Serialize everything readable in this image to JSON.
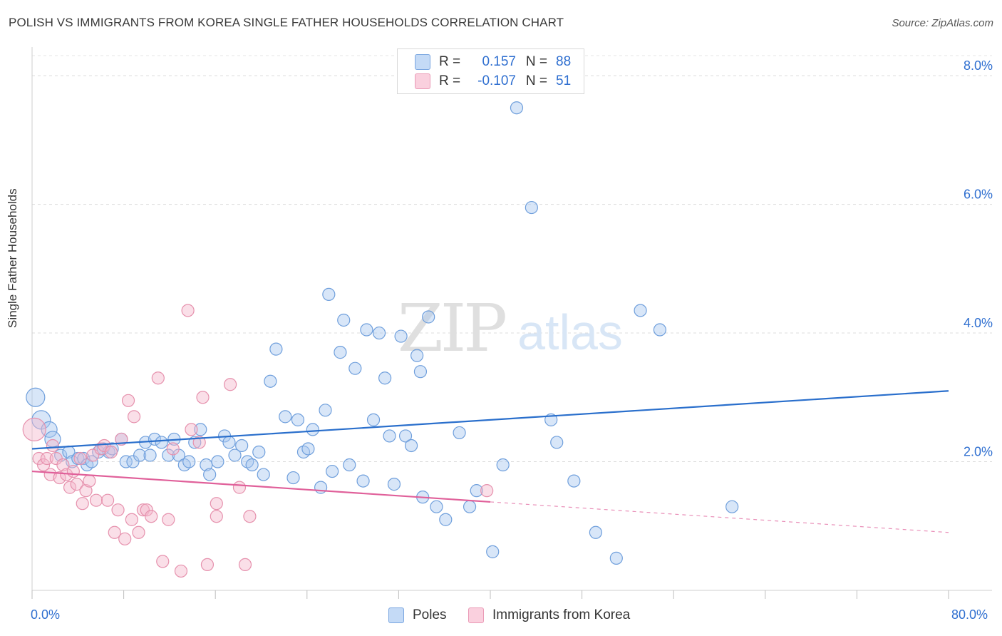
{
  "title": "POLISH VS IMMIGRANTS FROM KOREA SINGLE FATHER HOUSEHOLDS CORRELATION CHART",
  "source": "Source: ZipAtlas.com",
  "watermark": {
    "left": "ZIP",
    "right": "atlas"
  },
  "legend": {
    "series1": {
      "r_label": "R =",
      "r_value": "0.157",
      "n_label": "N =",
      "n_value": "88",
      "color": "#a8c8f0"
    },
    "series2": {
      "r_label": "R =",
      "r_value": "-0.107",
      "n_label": "N =",
      "n_value": "51",
      "color": "#f5b8cc"
    }
  },
  "bottom_legend": {
    "series1": "Poles",
    "series2": "Immigrants from Korea"
  },
  "x_tick_left": "0.0%",
  "x_tick_right": "80.0%",
  "chart_data": {
    "type": "scatter",
    "title": "POLISH VS IMMIGRANTS FROM KOREA SINGLE FATHER HOUSEHOLDS CORRELATION CHART",
    "xlabel": "",
    "ylabel": "Single Father Households",
    "xlim": [
      0,
      80
    ],
    "ylim": [
      0,
      8.4
    ],
    "y_ticks": [
      {
        "value": 2,
        "label": "2.0%"
      },
      {
        "value": 4,
        "label": "4.0%"
      },
      {
        "value": 6,
        "label": "6.0%"
      },
      {
        "value": 8,
        "label": "8.0%"
      }
    ],
    "x_tick_values": [
      0,
      8,
      16,
      24,
      32,
      40,
      48,
      56,
      64,
      72,
      80
    ],
    "series": [
      {
        "name": "Poles",
        "color": "#a8c8f0",
        "stroke": "#6f9fdc",
        "trend_color": "#2a6fcc",
        "trend": {
          "x0": 0,
          "y0": 2.2,
          "x1": 80,
          "y1": 3.1,
          "solid_until": 80
        },
        "points": [
          [
            0.3,
            3.0
          ],
          [
            0.8,
            2.65
          ],
          [
            1.5,
            2.5
          ],
          [
            1.8,
            2.35
          ],
          [
            2.5,
            2.1
          ],
          [
            3.2,
            2.15
          ],
          [
            3.5,
            2.0
          ],
          [
            4.0,
            2.05
          ],
          [
            4.5,
            2.05
          ],
          [
            4.8,
            1.95
          ],
          [
            5.2,
            2.0
          ],
          [
            5.8,
            2.15
          ],
          [
            6.2,
            2.2
          ],
          [
            6.7,
            2.15
          ],
          [
            7.0,
            2.2
          ],
          [
            7.8,
            2.35
          ],
          [
            8.2,
            2.0
          ],
          [
            8.8,
            2.0
          ],
          [
            9.4,
            2.1
          ],
          [
            9.9,
            2.3
          ],
          [
            10.3,
            2.1
          ],
          [
            10.7,
            2.35
          ],
          [
            11.3,
            2.3
          ],
          [
            11.9,
            2.1
          ],
          [
            12.4,
            2.35
          ],
          [
            12.8,
            2.1
          ],
          [
            13.3,
            1.95
          ],
          [
            13.7,
            2.0
          ],
          [
            14.2,
            2.3
          ],
          [
            14.7,
            2.5
          ],
          [
            15.2,
            1.95
          ],
          [
            15.5,
            1.8
          ],
          [
            16.2,
            2.0
          ],
          [
            16.8,
            2.4
          ],
          [
            17.2,
            2.3
          ],
          [
            17.7,
            2.1
          ],
          [
            18.3,
            2.25
          ],
          [
            18.8,
            2.0
          ],
          [
            19.2,
            1.95
          ],
          [
            19.8,
            2.15
          ],
          [
            20.2,
            1.8
          ],
          [
            20.8,
            3.25
          ],
          [
            21.3,
            3.75
          ],
          [
            22.1,
            2.7
          ],
          [
            22.8,
            1.75
          ],
          [
            23.2,
            2.65
          ],
          [
            23.7,
            2.15
          ],
          [
            24.1,
            2.2
          ],
          [
            24.5,
            2.5
          ],
          [
            25.2,
            1.6
          ],
          [
            25.6,
            2.8
          ],
          [
            25.9,
            4.6
          ],
          [
            26.2,
            1.85
          ],
          [
            26.9,
            3.7
          ],
          [
            27.2,
            4.2
          ],
          [
            27.7,
            1.95
          ],
          [
            28.2,
            3.45
          ],
          [
            28.9,
            1.7
          ],
          [
            29.2,
            4.05
          ],
          [
            29.8,
            2.65
          ],
          [
            30.3,
            4.0
          ],
          [
            30.8,
            3.3
          ],
          [
            31.2,
            2.4
          ],
          [
            31.6,
            1.65
          ],
          [
            32.2,
            3.95
          ],
          [
            32.6,
            2.4
          ],
          [
            33.1,
            2.25
          ],
          [
            33.6,
            3.65
          ],
          [
            33.9,
            3.4
          ],
          [
            34.1,
            1.45
          ],
          [
            34.6,
            4.25
          ],
          [
            35.3,
            1.3
          ],
          [
            36.1,
            1.1
          ],
          [
            37.3,
            2.45
          ],
          [
            38.2,
            1.3
          ],
          [
            38.8,
            1.55
          ],
          [
            40.2,
            0.6
          ],
          [
            41.1,
            1.95
          ],
          [
            42.3,
            7.5
          ],
          [
            43.6,
            5.95
          ],
          [
            45.3,
            2.65
          ],
          [
            45.8,
            2.3
          ],
          [
            47.3,
            1.7
          ],
          [
            49.2,
            0.9
          ],
          [
            51.0,
            0.5
          ],
          [
            53.1,
            4.35
          ],
          [
            54.8,
            4.05
          ],
          [
            61.1,
            1.3
          ]
        ],
        "sizes": {
          "0": 13,
          "1": 13,
          "2": 11,
          "3": 11
        }
      },
      {
        "name": "Immigrants from Korea",
        "color": "#f5b8cc",
        "stroke": "#e691ad",
        "trend_color": "#e0609a",
        "trend": {
          "x0": 0,
          "y0": 1.85,
          "x1": 80,
          "y1": 0.9,
          "solid_until": 40
        },
        "points": [
          [
            0.2,
            2.5
          ],
          [
            0.6,
            2.05
          ],
          [
            1.0,
            1.95
          ],
          [
            1.3,
            2.05
          ],
          [
            1.6,
            1.8
          ],
          [
            1.8,
            2.25
          ],
          [
            2.1,
            2.05
          ],
          [
            2.4,
            1.75
          ],
          [
            2.7,
            1.95
          ],
          [
            3.0,
            1.8
          ],
          [
            3.3,
            1.6
          ],
          [
            3.6,
            1.85
          ],
          [
            3.9,
            1.65
          ],
          [
            4.2,
            2.05
          ],
          [
            4.4,
            1.35
          ],
          [
            4.7,
            1.55
          ],
          [
            5.0,
            1.7
          ],
          [
            5.3,
            2.1
          ],
          [
            5.6,
            1.4
          ],
          [
            6.0,
            2.2
          ],
          [
            6.3,
            2.25
          ],
          [
            6.6,
            1.4
          ],
          [
            6.9,
            2.15
          ],
          [
            7.2,
            0.9
          ],
          [
            7.5,
            1.25
          ],
          [
            7.8,
            2.35
          ],
          [
            8.1,
            0.8
          ],
          [
            8.4,
            2.95
          ],
          [
            8.7,
            1.1
          ],
          [
            8.9,
            2.7
          ],
          [
            9.3,
            0.9
          ],
          [
            9.7,
            1.25
          ],
          [
            10.0,
            1.25
          ],
          [
            10.4,
            1.15
          ],
          [
            11.0,
            3.3
          ],
          [
            11.4,
            0.45
          ],
          [
            11.9,
            1.1
          ],
          [
            12.3,
            2.2
          ],
          [
            13.0,
            0.3
          ],
          [
            13.6,
            4.35
          ],
          [
            13.9,
            2.5
          ],
          [
            14.6,
            2.3
          ],
          [
            14.9,
            3.0
          ],
          [
            15.3,
            0.4
          ],
          [
            16.1,
            1.35
          ],
          [
            16.1,
            1.15
          ],
          [
            17.3,
            3.2
          ],
          [
            18.1,
            1.6
          ],
          [
            18.6,
            0.4
          ],
          [
            19.0,
            1.15
          ],
          [
            39.7,
            1.55
          ]
        ],
        "sizes": {
          "0": 16
        }
      }
    ]
  }
}
